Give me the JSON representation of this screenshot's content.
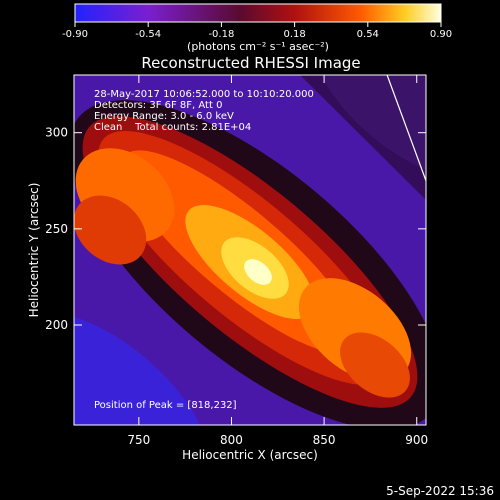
{
  "colorbar": {
    "tick_labels": [
      "-0.90",
      "-0.54",
      "-0.18",
      "0.18",
      "0.54",
      "0.90"
    ],
    "range": [
      -0.9,
      0.9
    ],
    "units_label": "(photons cm⁻² s⁻¹ asec⁻²)",
    "colors": [
      "#2222ff",
      "#7a1fd0",
      "#5a0a30",
      "#b01010",
      "#ff5a00",
      "#ffcc20",
      "#ffffe0"
    ]
  },
  "chart_data": {
    "type": "heatmap",
    "title": "Reconstructed RHESSI Image",
    "xlabel": "Heliocentric X (arcsec)",
    "ylabel": "Heliocentric Y (arcsec)",
    "xlim": [
      715,
      905
    ],
    "ylim": [
      148,
      330
    ],
    "x_ticks": [
      750,
      800,
      850,
      900
    ],
    "y_ticks": [
      200,
      250,
      300
    ],
    "annotations": [
      "28-May-2017 10:06:52.000 to 10:10:20.000",
      "Detectors: 3F 6F 8F, Att 0",
      "Energy Range: 3.0 - 6.0 keV",
      "Clean    Total counts: 2.81E+04"
    ],
    "peak_label": "Position of Peak = [818,232]",
    "peak": [
      818,
      232
    ],
    "limb_line": [
      [
        884,
        330
      ],
      [
        905,
        275
      ]
    ],
    "limb_color": "#ffffff"
  },
  "footer": {
    "date": "5-Sep-2022 15:36"
  }
}
